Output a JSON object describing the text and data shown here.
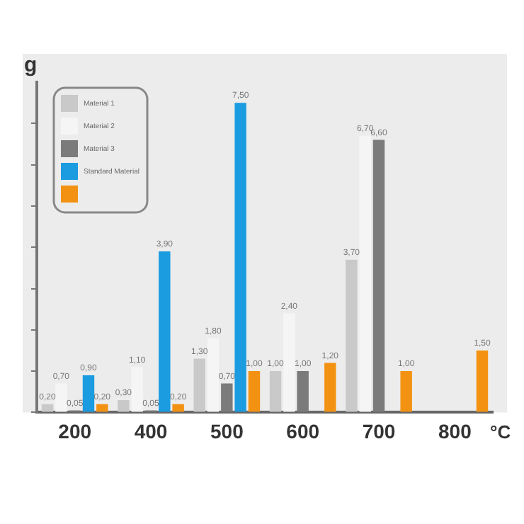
{
  "chart_data": {
    "type": "bar",
    "xlabel": "°C",
    "ylabel": "g",
    "categories": [
      "200",
      "400",
      "500",
      "600",
      "700",
      "800"
    ],
    "series": [
      {
        "name": "Material 1",
        "color": "#c9c9c9",
        "values": [
          0.2,
          0.3,
          1.3,
          1.0,
          3.7,
          null
        ],
        "value_labels": [
          "0,20",
          "0,30",
          "1,30",
          "1,00",
          "3,70",
          null
        ]
      },
      {
        "name": "Material 2",
        "color": "#f5f5f5",
        "values": [
          0.7,
          1.1,
          1.8,
          2.4,
          6.7,
          null
        ],
        "value_labels": [
          "0,70",
          "1,10",
          "1,80",
          "2,40",
          "6,70",
          null
        ]
      },
      {
        "name": "Material 3",
        "color": "#7b7b7b",
        "values": [
          0.05,
          0.05,
          0.7,
          1.0,
          6.6,
          null
        ],
        "value_labels": [
          "0,05",
          "0,05",
          "0,70",
          "1,00",
          "6,60",
          null
        ]
      },
      {
        "name": "Standard Material",
        "color": "#1b9be0",
        "values": [
          0.9,
          3.9,
          7.5,
          null,
          null,
          null
        ],
        "value_labels": [
          "0,90",
          "3,90",
          "7,50",
          null,
          null,
          null
        ]
      },
      {
        "color": "#f39212",
        "values": [
          0.2,
          0.2,
          1.0,
          1.2,
          1.0,
          1.5
        ],
        "value_labels": [
          "0,20",
          "0,20",
          "1,00",
          "1,20",
          "1,00",
          "1,50"
        ]
      }
    ],
    "ylim": [
      0,
      8
    ],
    "yticks": [
      {
        "value": 0,
        "label": null
      },
      {
        "value": 1,
        "label": null
      },
      {
        "value": 2,
        "label": null
      },
      {
        "value": 3,
        "label": null
      },
      {
        "value": 4,
        "label": null
      },
      {
        "value": 5,
        "label": null
      },
      {
        "value": 6,
        "label": null
      },
      {
        "value": 7,
        "label": null
      }
    ],
    "tick_labels": "x",
    "grid": false,
    "legend": "top left"
  }
}
